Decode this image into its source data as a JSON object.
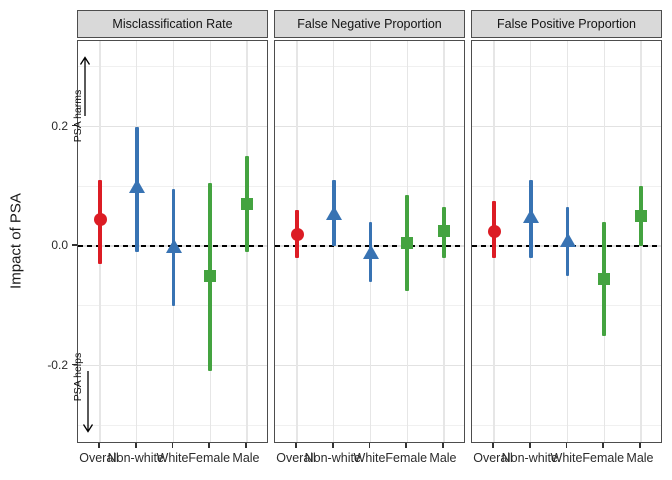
{
  "figure": {
    "background": "#ffffff",
    "strip_background": "#d9d9d9",
    "panel_border_color": "#4d4d4d"
  },
  "chart_data": {
    "type": "scatter",
    "subtype": "faceted-pointrange",
    "title": "",
    "xlabel": "",
    "ylabel": "Impact of PSA",
    "ylim": [
      -0.33,
      0.34
    ],
    "grid": "on",
    "legend": "none",
    "reference_line_y": 0,
    "reference_line_style": "dashed-black",
    "y_ticks": [
      {
        "label": "0.2",
        "value": 0.2
      },
      {
        "label": "0.0",
        "value": 0.0
      },
      {
        "label": "-0.2",
        "value": -0.2
      }
    ],
    "y_minor_ticks": [
      0.3,
      0.1,
      -0.1,
      -0.3
    ],
    "categories": [
      "Overall",
      "Non-white",
      "White",
      "Female",
      "Male"
    ],
    "category_styles": [
      {
        "category": "Overall",
        "shape": "circle",
        "color": "#DC1C24"
      },
      {
        "category": "Non-white",
        "shape": "triangle",
        "color": "#3873B3"
      },
      {
        "category": "White",
        "shape": "triangle",
        "color": "#3873B3"
      },
      {
        "category": "Female",
        "shape": "square",
        "color": "#44A340"
      },
      {
        "category": "Male",
        "shape": "square",
        "color": "#44A340"
      }
    ],
    "facets": [
      {
        "label": "Misclassification Rate",
        "points": [
          {
            "category": "Overall",
            "value": 0.045,
            "lower": -0.03,
            "upper": 0.11
          },
          {
            "category": "Non-white",
            "value": 0.1,
            "lower": -0.01,
            "upper": 0.2
          },
          {
            "category": "White",
            "value": 0.0,
            "lower": -0.1,
            "upper": 0.095
          },
          {
            "category": "Female",
            "value": -0.05,
            "lower": -0.21,
            "upper": 0.105
          },
          {
            "category": "Male",
            "value": 0.07,
            "lower": -0.01,
            "upper": 0.15
          }
        ]
      },
      {
        "label": "False Negative Proportion",
        "points": [
          {
            "category": "Overall",
            "value": 0.02,
            "lower": -0.02,
            "upper": 0.06
          },
          {
            "category": "Non-white",
            "value": 0.055,
            "lower": 0.0,
            "upper": 0.11
          },
          {
            "category": "White",
            "value": -0.01,
            "lower": -0.06,
            "upper": 0.04
          },
          {
            "category": "Female",
            "value": 0.005,
            "lower": -0.075,
            "upper": 0.085
          },
          {
            "category": "Male",
            "value": 0.025,
            "lower": -0.02,
            "upper": 0.065
          }
        ]
      },
      {
        "label": "False Positive Proportion",
        "points": [
          {
            "category": "Overall",
            "value": 0.025,
            "lower": -0.02,
            "upper": 0.075
          },
          {
            "category": "Non-white",
            "value": 0.05,
            "lower": -0.02,
            "upper": 0.11
          },
          {
            "category": "White",
            "value": 0.01,
            "lower": -0.05,
            "upper": 0.065
          },
          {
            "category": "Female",
            "value": -0.055,
            "lower": -0.15,
            "upper": 0.04
          },
          {
            "category": "Male",
            "value": 0.05,
            "lower": 0.0,
            "upper": 0.1
          }
        ]
      }
    ],
    "annotations": [
      {
        "text": "PSA harms",
        "arrow": "up"
      },
      {
        "text": "PSA helps",
        "arrow": "down"
      }
    ]
  }
}
